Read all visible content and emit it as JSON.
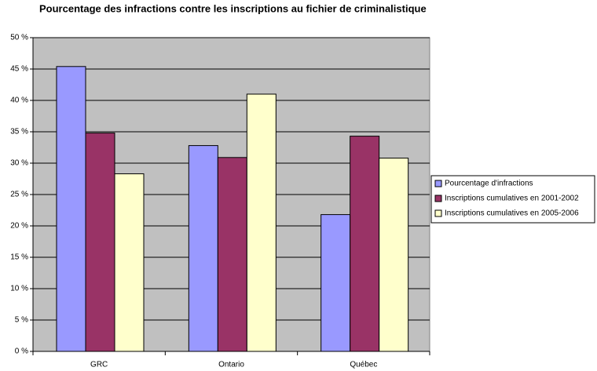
{
  "chart_data": {
    "type": "bar",
    "title": "Pourcentage des infractions contre les inscriptions au fichier de criminalistique",
    "categories": [
      "GRC",
      "Ontario",
      "Québec"
    ],
    "series": [
      {
        "name": "Pourcentage d'infractions",
        "color": "#9999ff",
        "values": [
          45.4,
          32.8,
          21.8
        ]
      },
      {
        "name": "Inscriptions cumulatives en 2001-2002",
        "color": "#993366",
        "values": [
          34.8,
          30.9,
          34.3
        ]
      },
      {
        "name": "Inscriptions cumulatives en 2005-2006",
        "color": "#ffffcc",
        "values": [
          28.3,
          41.0,
          30.8
        ]
      }
    ],
    "ylim": [
      0,
      50
    ],
    "yticks": [
      {
        "value": 0,
        "label": "0 %"
      },
      {
        "value": 5,
        "label": "5 %"
      },
      {
        "value": 10,
        "label": "10 %"
      },
      {
        "value": 15,
        "label": "15 %"
      },
      {
        "value": 20,
        "label": "20 %"
      },
      {
        "value": 25,
        "label": "25 %"
      },
      {
        "value": 30,
        "label": "30 %"
      },
      {
        "value": 35,
        "label": "35 %"
      },
      {
        "value": 40,
        "label": "40 %"
      },
      {
        "value": 45,
        "label": "45 %"
      },
      {
        "value": 50,
        "label": "50 %"
      }
    ],
    "grid": true,
    "legend": "right",
    "plot_background": "#c0c0c0"
  }
}
